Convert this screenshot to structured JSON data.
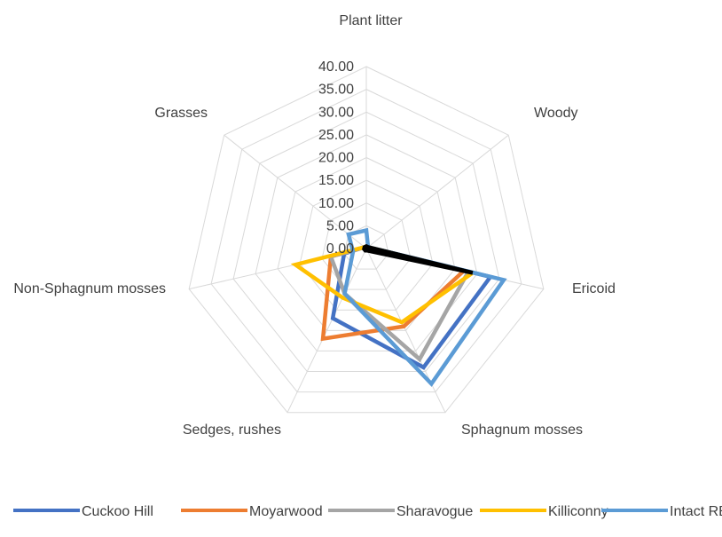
{
  "chart_data": {
    "type": "radar",
    "title": "",
    "axes": [
      "Plant litter",
      "Woody",
      "Ericoid",
      "Sphagnum mosses",
      "Sedges, rushes",
      "Non-Sphagnum mosses",
      "Grasses"
    ],
    "rlim": [
      0,
      40
    ],
    "ticks": [
      "0.00",
      "5.00",
      "10.00",
      "15.00",
      "20.00",
      "25.00",
      "30.00",
      "35.00",
      "40.00"
    ],
    "legend_position": "bottom",
    "series": [
      {
        "name": "Cuckoo Hill",
        "color": "#4472C4",
        "values": [
          0.5,
          0.5,
          28,
          29,
          17,
          5,
          0.5
        ]
      },
      {
        "name": "Moyarwood",
        "color": "#ED7D31",
        "values": [
          0.5,
          0.5,
          22,
          19,
          22,
          8,
          0.5
        ]
      },
      {
        "name": "Sharavogue",
        "color": "#A5A5A5",
        "values": [
          0.5,
          0.5,
          23,
          27,
          11,
          8,
          0.5
        ]
      },
      {
        "name": "Killiconny",
        "color": "#FFC000",
        "values": [
          0.5,
          0.5,
          24,
          18,
          12,
          16,
          0.5
        ]
      },
      {
        "name": "Intact RB",
        "color": "#5B9BD5",
        "values": [
          4,
          0.5,
          31,
          33,
          11,
          3,
          5
        ]
      },
      {
        "name": "",
        "color": "#000000",
        "values": [
          0.5,
          0.5,
          24,
          0.5,
          0.5,
          0.5,
          0.5
        ]
      }
    ]
  }
}
